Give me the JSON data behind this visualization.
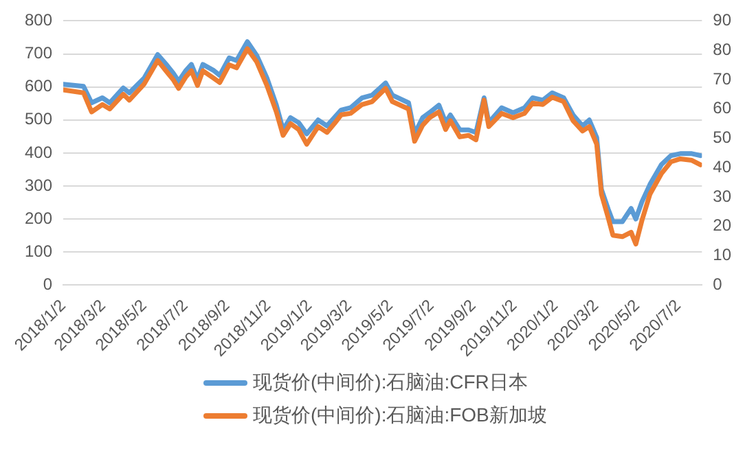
{
  "chart_data": {
    "type": "line",
    "x": [
      "2018-01-02",
      "2018-02-01",
      "2018-02-13",
      "2018-03-01",
      "2018-03-12",
      "2018-04-01",
      "2018-04-10",
      "2018-05-02",
      "2018-05-22",
      "2018-06-05",
      "2018-06-14",
      "2018-06-22",
      "2018-07-03",
      "2018-07-11",
      "2018-07-20",
      "2018-07-28",
      "2018-08-13",
      "2018-08-22",
      "2018-09-05",
      "2018-09-16",
      "2018-10-02",
      "2018-10-16",
      "2018-10-31",
      "2018-11-14",
      "2018-11-24",
      "2018-12-05",
      "2018-12-17",
      "2018-12-29",
      "2019-01-15",
      "2019-01-28",
      "2019-02-08",
      "2019-02-18",
      "2019-03-04",
      "2019-03-21",
      "2019-04-05",
      "2019-04-25",
      "2019-05-05",
      "2019-05-29",
      "2019-06-07",
      "2019-06-19",
      "2019-06-29",
      "2019-07-13",
      "2019-07-23",
      "2019-07-30",
      "2019-08-13",
      "2019-08-26",
      "2019-09-06",
      "2019-09-18",
      "2019-09-25",
      "2019-10-14",
      "2019-10-31",
      "2019-11-17",
      "2019-11-29",
      "2019-12-14",
      "2019-12-28",
      "2020-01-14",
      "2020-01-28",
      "2020-02-11",
      "2020-02-21",
      "2020-03-03",
      "2020-03-10",
      "2020-03-20",
      "2020-03-27",
      "2020-04-10",
      "2020-04-23",
      "2020-04-30",
      "2020-05-09",
      "2020-05-21",
      "2020-06-07",
      "2020-06-21",
      "2020-07-05",
      "2020-07-22",
      "2020-08-04"
    ],
    "series": [
      {
        "name": "现货价(中间价):石脑油:CFR日本",
        "color": "#5b9bd5",
        "values": [
          608,
          602,
          552,
          567,
          552,
          597,
          582,
          627,
          698,
          665,
          642,
          617,
          650,
          668,
          623,
          668,
          650,
          635,
          688,
          680,
          737,
          695,
          627,
          545,
          470,
          507,
          492,
          458,
          500,
          482,
          507,
          530,
          537,
          567,
          575,
          612,
          575,
          552,
          458,
          507,
          522,
          545,
          492,
          515,
          470,
          470,
          462,
          567,
          492,
          537,
          522,
          537,
          567,
          560,
          582,
          567,
          515,
          482,
          500,
          447,
          290,
          230,
          192,
          192,
          232,
          200,
          252,
          305,
          365,
          392,
          398,
          398,
          392
        ]
      },
      {
        "name": "现货价(中间价):石脑油:FOB新加坡",
        "color": "#ed7d31",
        "axis": "y2",
        "values": [
          66.5,
          65.5,
          59,
          61.5,
          60,
          65,
          63,
          68.5,
          76.5,
          72.5,
          70,
          67,
          71,
          73,
          68,
          73,
          70.5,
          69,
          75,
          74,
          80.5,
          76,
          68,
          59,
          51,
          55,
          53,
          48,
          54,
          52,
          55,
          58,
          58.5,
          61.5,
          62.5,
          67,
          62.5,
          60,
          49,
          54.5,
          57,
          59,
          53,
          56,
          50.5,
          51,
          49.5,
          63,
          54,
          58.5,
          57,
          58.5,
          62,
          61.5,
          64,
          62.5,
          56,
          52.5,
          54,
          48,
          31,
          23,
          17,
          16.5,
          18,
          14,
          22,
          31,
          38,
          42,
          43,
          42.5,
          41
        ]
      }
    ],
    "xlim": [
      "2018-01-02",
      "2020-08-06"
    ],
    "xticks": [
      {
        "value": "2018-01-02",
        "label": "2018/1/2"
      },
      {
        "value": "2018-03-02",
        "label": "2018/3/2"
      },
      {
        "value": "2018-05-02",
        "label": "2018/5/2"
      },
      {
        "value": "2018-07-02",
        "label": "2018/7/2"
      },
      {
        "value": "2018-09-02",
        "label": "2018/9/2"
      },
      {
        "value": "2018-11-02",
        "label": "2018/11/2"
      },
      {
        "value": "2019-01-02",
        "label": "2019/1/2"
      },
      {
        "value": "2019-03-02",
        "label": "2019/3/2"
      },
      {
        "value": "2019-05-02",
        "label": "2019/5/2"
      },
      {
        "value": "2019-07-02",
        "label": "2019/7/2"
      },
      {
        "value": "2019-09-02",
        "label": "2019/9/2"
      },
      {
        "value": "2019-11-02",
        "label": "2019/11/2"
      },
      {
        "value": "2020-01-02",
        "label": "2020/1/2"
      },
      {
        "value": "2020-03-02",
        "label": "2020/3/2"
      },
      {
        "value": "2020-05-02",
        "label": "2020/5/2"
      },
      {
        "value": "2020-07-02",
        "label": "2020/7/2"
      }
    ],
    "ylim": [
      0,
      800
    ],
    "yticks": [
      0,
      100,
      200,
      300,
      400,
      500,
      600,
      700,
      800
    ],
    "y2lim": [
      0,
      90
    ],
    "y2ticks": [
      0,
      10,
      20,
      30,
      40,
      50,
      60,
      70,
      80,
      90
    ],
    "grid": "y",
    "legend": "bottom",
    "marker": "none",
    "line_style": "solid"
  }
}
